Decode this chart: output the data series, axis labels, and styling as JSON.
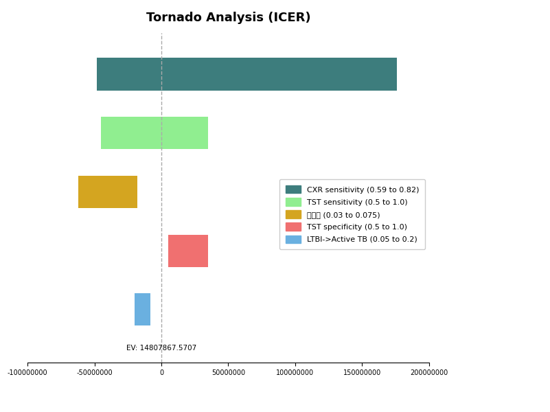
{
  "title": "Tornado Analysis (ICER)",
  "ev": 14807867.5707,
  "ev_label": "EV: 14807867.5707",
  "bars": [
    {
      "label": "CXR sensitivity (0.59 to 0.82)",
      "low": -48000000,
      "high": 176000000,
      "color": "#3d7d7d"
    },
    {
      "label": "TST sensitivity (0.5 to 1.0)",
      "low": -45000000,
      "high": 35000000,
      "color": "#90ee90"
    },
    {
      "label": "할인율 (0.03 to 0.075)",
      "low": -62000000,
      "high": -18000000,
      "color": "#d4a520"
    },
    {
      "label": "TST specificity (0.5 to 1.0)",
      "low": 5000000,
      "high": 35000000,
      "color": "#f07070"
    },
    {
      "label": "LTBI->Active TB (0.05 to 0.2)",
      "low": -20000000,
      "high": -8000000,
      "color": "#6ab0e0"
    }
  ],
  "xlim": [
    -100000000,
    200000000
  ],
  "xticks": [
    -100000000,
    -50000000,
    0,
    50000000,
    100000000,
    150000000,
    200000000
  ],
  "background_color": "#ffffff",
  "title_fontsize": 13,
  "legend_fontsize": 8,
  "bar_height": 0.55
}
